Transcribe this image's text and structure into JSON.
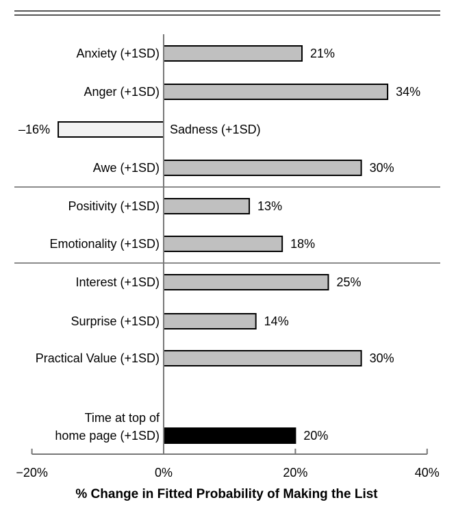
{
  "chart_data": {
    "type": "bar",
    "orientation": "horizontal",
    "xlabel": "% Change in Fitted Probability of Making the List",
    "xlim": [
      -20,
      40
    ],
    "xticks": [
      {
        "value": -20,
        "label": "−20%"
      },
      {
        "value": 0,
        "label": "0%"
      },
      {
        "value": 20,
        "label": "20%"
      },
      {
        "value": 40,
        "label": "40%"
      }
    ],
    "bars": [
      {
        "category": "Anxiety (+1SD)",
        "value": 21,
        "value_label": "21%",
        "fill": "#c0c0c0"
      },
      {
        "category": "Anger (+1SD)",
        "value": 34,
        "value_label": "34%",
        "fill": "#c0c0c0"
      },
      {
        "category": "Sadness (+1SD)",
        "value": -16,
        "value_label": "–16%",
        "fill": "#f2f2f2"
      },
      {
        "category": "Awe (+1SD)",
        "value": 30,
        "value_label": "30%",
        "fill": "#c0c0c0"
      },
      {
        "category": "Positivity (+1SD)",
        "value": 13,
        "value_label": "13%",
        "fill": "#c0c0c0"
      },
      {
        "category": "Emotionality (+1SD)",
        "value": 18,
        "value_label": "18%",
        "fill": "#c0c0c0"
      },
      {
        "category": "Interest (+1SD)",
        "value": 25,
        "value_label": "25%",
        "fill": "#c0c0c0"
      },
      {
        "category": "Surprise (+1SD)",
        "value": 14,
        "value_label": "14%",
        "fill": "#c0c0c0"
      },
      {
        "category": "Practical Value (+1SD)",
        "value": 30,
        "value_label": "30%",
        "fill": "#c0c0c0"
      },
      {
        "category": "Time at top of home page (+1SD)",
        "category_lines": [
          "Time at top of",
          "home page (+1SD)"
        ],
        "value": 20,
        "value_label": "20%",
        "fill": "#000000"
      }
    ],
    "group_dividers_after": [
      3,
      5
    ],
    "grid": false
  }
}
